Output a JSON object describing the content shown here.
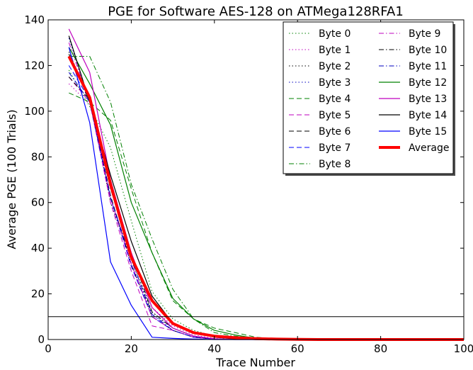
{
  "chart_data": {
    "type": "line",
    "title": "PGE for Software AES-128 on ATMega128RFA1",
    "xlabel": "Trace Number",
    "ylabel": "Average PGE (100 Trials)",
    "xlim": [
      0,
      100
    ],
    "ylim": [
      0,
      140
    ],
    "x_ticks": [
      0,
      20,
      40,
      60,
      80,
      100
    ],
    "y_ticks": [
      0,
      20,
      40,
      60,
      80,
      100,
      120,
      140
    ],
    "x_tick_labels": [
      "0",
      "20",
      "40",
      "60",
      "80",
      "100"
    ],
    "y_tick_labels": [
      "0",
      "20",
      "40",
      "60",
      "80",
      "100",
      "120",
      "140"
    ],
    "grid": false,
    "legend_position": "top-right",
    "reference_line": {
      "y": 10,
      "color": "#000000"
    },
    "x": [
      5,
      10,
      15,
      20,
      25,
      30,
      35,
      40,
      45,
      50,
      55,
      60,
      65,
      70,
      75,
      80,
      85,
      90,
      95,
      100
    ],
    "series": [
      {
        "name": "Byte 0",
        "color": "#008000",
        "dash": "dotted",
        "width": 1,
        "values": [
          118,
          102,
          84,
          52,
          21,
          9,
          4,
          1.5,
          0.5,
          0.2,
          0,
          0,
          0,
          0,
          0,
          0,
          0,
          0,
          0,
          0
        ]
      },
      {
        "name": "Byte 1",
        "color": "#bf00bf",
        "dash": "dotted",
        "width": 1,
        "values": [
          112,
          103,
          66,
          38,
          14,
          6,
          2,
          0.5,
          0,
          0,
          0,
          0,
          0,
          0,
          0,
          0,
          0,
          0,
          0,
          0
        ]
      },
      {
        "name": "Byte 2",
        "color": "#000000",
        "dash": "dotted",
        "width": 1,
        "values": [
          126,
          105,
          60,
          35,
          12,
          5,
          1.5,
          0.3,
          0,
          0,
          0,
          0,
          0,
          0,
          0,
          0,
          0,
          0,
          0,
          0
        ]
      },
      {
        "name": "Byte 3",
        "color": "#0000bf",
        "dash": "dotted",
        "width": 1,
        "values": [
          132,
          104,
          62,
          33,
          11,
          5,
          1.5,
          0.3,
          0,
          0,
          0,
          0,
          0,
          0,
          0,
          0,
          0,
          0,
          0,
          0
        ]
      },
      {
        "name": "Byte 4",
        "color": "#008000",
        "dash": "dashed",
        "width": 1,
        "values": [
          108,
          104,
          96,
          66,
          38,
          17,
          9,
          5,
          3,
          1,
          0.3,
          0,
          0,
          0,
          0,
          0,
          0,
          0,
          0,
          0
        ]
      },
      {
        "name": "Byte 5",
        "color": "#bf00bf",
        "dash": "dashed",
        "width": 1,
        "values": [
          115,
          104,
          60,
          30,
          6,
          4,
          1,
          0.2,
          0,
          0,
          0,
          0,
          0,
          0,
          0,
          0,
          0,
          0,
          0,
          0
        ]
      },
      {
        "name": "Byte 6",
        "color": "#000000",
        "dash": "dashed",
        "width": 1,
        "values": [
          115,
          105,
          63,
          33,
          10,
          4,
          1,
          0.2,
          0,
          0,
          0,
          0,
          0,
          0,
          0,
          0,
          0,
          0,
          0,
          0
        ]
      },
      {
        "name": "Byte 7",
        "color": "#0000ff",
        "dash": "dashed",
        "width": 1,
        "values": [
          120,
          105,
          62,
          32,
          10,
          4,
          1,
          0.2,
          0,
          0,
          0,
          0,
          0,
          0,
          0,
          0,
          0,
          0,
          0,
          0
        ]
      },
      {
        "name": "Byte 8",
        "color": "#008000",
        "dash": "dashdot",
        "width": 1,
        "values": [
          124,
          124,
          104,
          68,
          44,
          22,
          9,
          3,
          1.5,
          0.5,
          0,
          0,
          0,
          0,
          0,
          0,
          0,
          0,
          0,
          0
        ]
      },
      {
        "name": "Byte 9",
        "color": "#bf00bf",
        "dash": "dashdot",
        "width": 1,
        "values": [
          130,
          104,
          62,
          33,
          10,
          4,
          1,
          0.2,
          0,
          0,
          0,
          0,
          0,
          0,
          0,
          0,
          0,
          0,
          0,
          0
        ]
      },
      {
        "name": "Byte 10",
        "color": "#000000",
        "dash": "dashdot",
        "width": 1,
        "values": [
          125,
          104,
          66,
          38,
          12,
          5,
          1.5,
          0.3,
          0,
          0,
          0,
          0,
          0,
          0,
          0,
          0,
          0,
          0,
          0,
          0
        ]
      },
      {
        "name": "Byte 11",
        "color": "#0000bf",
        "dash": "dashdot",
        "width": 1,
        "values": [
          117,
          104,
          62,
          35,
          11,
          4,
          1,
          0.2,
          0,
          0,
          0,
          0,
          0,
          0,
          0,
          0,
          0,
          0,
          0,
          0
        ]
      },
      {
        "name": "Byte 12",
        "color": "#008000",
        "dash": "solid",
        "width": 1.2,
        "values": [
          128,
          112,
          94,
          60,
          38,
          18,
          9,
          4,
          2,
          0.5,
          0.2,
          0,
          0,
          0,
          0,
          0,
          0,
          0,
          0,
          0
        ]
      },
      {
        "name": "Byte 13",
        "color": "#bf00bf",
        "dash": "solid",
        "width": 1.2,
        "values": [
          136,
          117,
          70,
          38,
          14,
          5,
          1.5,
          0.3,
          0,
          0,
          0,
          0,
          0,
          0,
          0,
          0,
          0,
          0,
          0,
          0
        ]
      },
      {
        "name": "Byte 14",
        "color": "#000000",
        "dash": "solid",
        "width": 1.2,
        "values": [
          133,
          104,
          72,
          43,
          19,
          7,
          3,
          1,
          0.3,
          0,
          0,
          0,
          0,
          0,
          0,
          0,
          0,
          0,
          0,
          0
        ]
      },
      {
        "name": "Byte 15",
        "color": "#0000ff",
        "dash": "solid",
        "width": 1.2,
        "values": [
          128,
          95,
          34,
          15,
          1,
          0.5,
          0.2,
          0,
          0,
          0,
          0,
          0,
          0,
          0,
          0,
          0,
          0,
          0,
          0,
          0
        ]
      },
      {
        "name": "Average",
        "color": "#ff0000",
        "dash": "solid",
        "width": 4,
        "values": [
          124,
          106,
          68,
          36,
          17,
          7,
          3,
          1.5,
          0.8,
          0.4,
          0.2,
          0.1,
          0,
          0,
          0,
          0,
          0,
          0,
          0,
          0
        ]
      }
    ]
  }
}
